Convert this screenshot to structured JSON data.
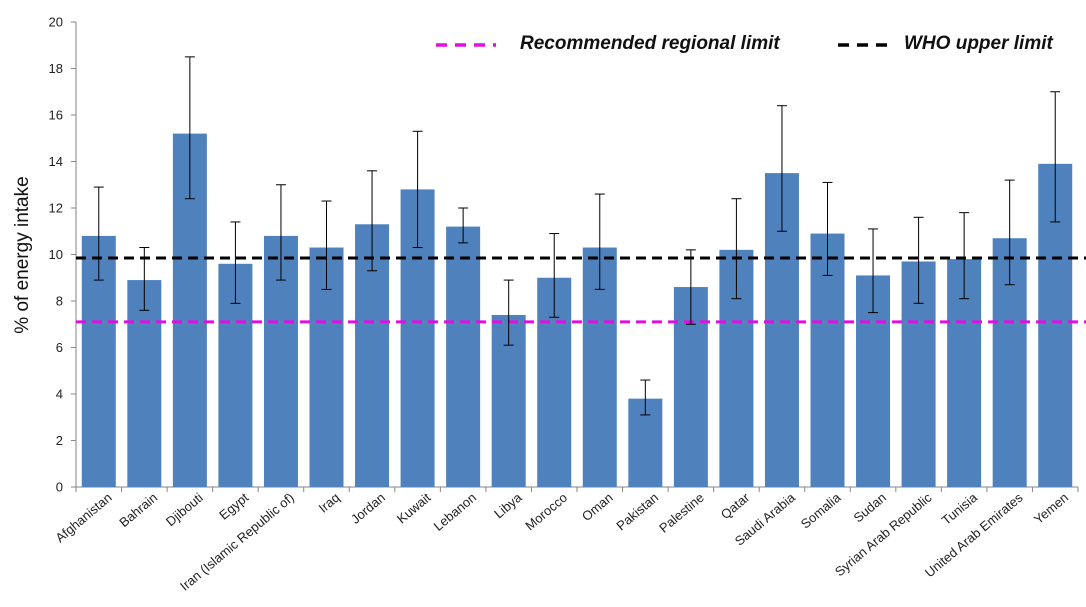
{
  "chart_data": {
    "type": "bar",
    "title": "",
    "xlabel": "",
    "ylabel": "% of energy intake",
    "ylim": [
      0,
      20
    ],
    "yticks": [
      0,
      2,
      4,
      6,
      8,
      10,
      12,
      14,
      16,
      18,
      20
    ],
    "grid": false,
    "legend_position": "top-right",
    "bar_color": "#4f81bd",
    "categories": [
      "Afghanistan",
      "Bahrain",
      "Djibouti",
      "Egypt",
      "Iran (Islamic Republic of)",
      "Iraq",
      "Jordan",
      "Kuwait",
      "Lebanon",
      "Libya",
      "Morocco",
      "Oman",
      "Pakistan",
      "Palestine",
      "Qatar",
      "Saudi Arabia",
      "Somalia",
      "Sudan",
      "Syrian Arab Republic",
      "Tunisia",
      "United Arab Emirates",
      "Yemen"
    ],
    "values": [
      10.8,
      8.9,
      15.2,
      9.6,
      10.8,
      10.3,
      11.3,
      12.8,
      11.2,
      7.4,
      9.0,
      10.3,
      3.8,
      8.6,
      10.2,
      13.5,
      10.9,
      9.1,
      9.7,
      9.8,
      10.7,
      13.9
    ],
    "error_low": [
      8.9,
      7.6,
      12.4,
      7.9,
      8.9,
      8.5,
      9.3,
      10.3,
      10.5,
      6.1,
      7.3,
      8.5,
      3.1,
      7.0,
      8.1,
      11.0,
      9.1,
      7.5,
      7.9,
      8.1,
      8.7,
      11.4
    ],
    "error_high": [
      12.9,
      10.3,
      18.5,
      11.4,
      13.0,
      12.3,
      13.6,
      15.3,
      12.0,
      8.9,
      10.9,
      12.6,
      4.6,
      10.2,
      12.4,
      16.4,
      13.1,
      11.1,
      11.6,
      11.8,
      13.2,
      17.0
    ],
    "reference_lines": [
      {
        "name": "Recommended regional limit",
        "value": 7.1,
        "color": "#e00ee0"
      },
      {
        "name": "WHO upper limit",
        "value": 9.85,
        "color": "#000000"
      }
    ]
  }
}
